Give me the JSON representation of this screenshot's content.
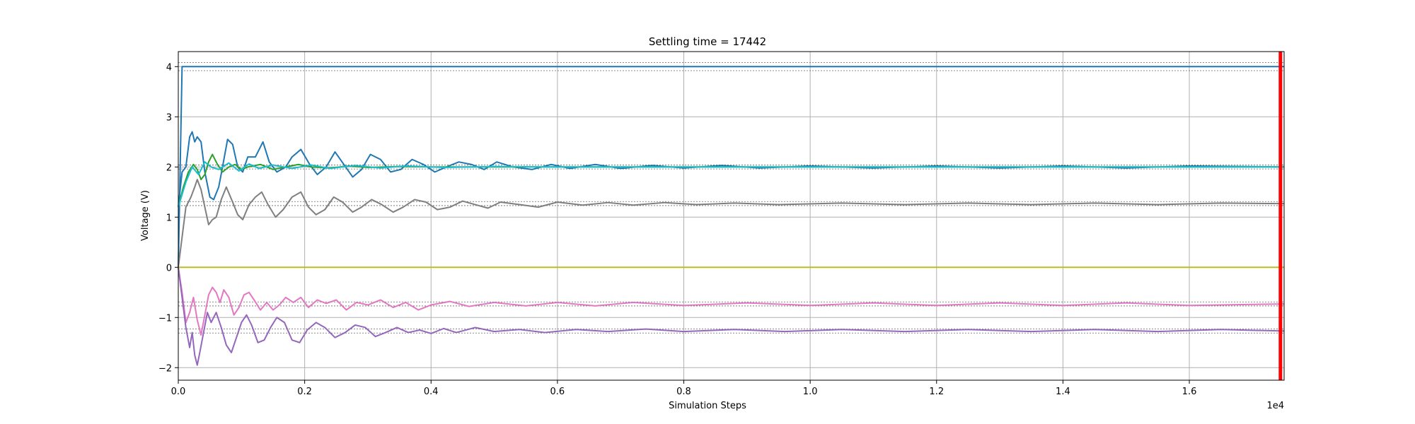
{
  "chart_data": {
    "type": "line",
    "title": "Settling time = 17442",
    "xlabel": "Simulation Steps",
    "ylabel": "Voltage (V)",
    "x_offset_label": "1e4",
    "xlim": [
      0,
      17500
    ],
    "ylim": [
      -2.25,
      4.3
    ],
    "x_ticks": [
      0,
      2000,
      4000,
      6000,
      8000,
      10000,
      12000,
      14000,
      16000
    ],
    "x_tick_labels": [
      "0.0",
      "0.2",
      "0.4",
      "0.6",
      "0.8",
      "1.0",
      "1.2",
      "1.4",
      "1.6"
    ],
    "y_ticks": [
      -2,
      -1,
      0,
      1,
      2,
      3,
      4
    ],
    "y_tick_labels": [
      "−2",
      "−1",
      "0",
      "1",
      "2",
      "3",
      "4"
    ],
    "grid": true,
    "settling_time": 17442,
    "settling_marker_color": "#ff0000",
    "reference_bands": [
      {
        "center": 4.0,
        "half_width": 0.08
      },
      {
        "center": 2.0,
        "half_width": 0.04
      },
      {
        "center": 1.27,
        "half_width": 0.04
      },
      {
        "center": -0.73,
        "half_width": 0.04
      },
      {
        "center": -1.27,
        "half_width": 0.04
      }
    ],
    "series": [
      {
        "color": "#1f77b4",
        "points": [
          [
            0,
            0
          ],
          [
            60,
            4.0
          ],
          [
            17500,
            4.0
          ]
        ]
      },
      {
        "color": "#bcbd22",
        "points": [
          [
            0,
            0
          ],
          [
            17500,
            0
          ]
        ]
      },
      {
        "color": "#1f77b4",
        "points": [
          [
            0,
            1.2
          ],
          [
            60,
            1.9
          ],
          [
            120,
            2.0
          ],
          [
            180,
            2.6
          ],
          [
            220,
            2.7
          ],
          [
            260,
            2.5
          ],
          [
            300,
            2.6
          ],
          [
            360,
            2.5
          ],
          [
            420,
            1.9
          ],
          [
            500,
            1.4
          ],
          [
            560,
            1.35
          ],
          [
            640,
            1.6
          ],
          [
            700,
            2.0
          ],
          [
            780,
            2.55
          ],
          [
            860,
            2.45
          ],
          [
            940,
            2.0
          ],
          [
            1020,
            1.9
          ],
          [
            1100,
            2.2
          ],
          [
            1220,
            2.2
          ],
          [
            1340,
            2.5
          ],
          [
            1440,
            2.1
          ],
          [
            1560,
            1.9
          ],
          [
            1700,
            2.0
          ],
          [
            1800,
            2.2
          ],
          [
            1940,
            2.35
          ],
          [
            2080,
            2.05
          ],
          [
            2200,
            1.85
          ],
          [
            2340,
            2.0
          ],
          [
            2480,
            2.3
          ],
          [
            2620,
            2.05
          ],
          [
            2760,
            1.8
          ],
          [
            2900,
            1.95
          ],
          [
            3040,
            2.25
          ],
          [
            3200,
            2.15
          ],
          [
            3360,
            1.9
          ],
          [
            3520,
            1.95
          ],
          [
            3700,
            2.15
          ],
          [
            3880,
            2.05
          ],
          [
            4060,
            1.9
          ],
          [
            4240,
            2.0
          ],
          [
            4440,
            2.1
          ],
          [
            4640,
            2.05
          ],
          [
            4840,
            1.95
          ],
          [
            5040,
            2.1
          ],
          [
            5300,
            2.0
          ],
          [
            5600,
            1.95
          ],
          [
            5900,
            2.05
          ],
          [
            6200,
            1.97
          ],
          [
            6600,
            2.05
          ],
          [
            7000,
            1.97
          ],
          [
            7500,
            2.03
          ],
          [
            8000,
            1.98
          ],
          [
            8600,
            2.03
          ],
          [
            9200,
            1.98
          ],
          [
            10000,
            2.02
          ],
          [
            11000,
            1.98
          ],
          [
            12000,
            2.02
          ],
          [
            13000,
            1.98
          ],
          [
            14000,
            2.02
          ],
          [
            15000,
            1.98
          ],
          [
            16000,
            2.02
          ],
          [
            17500,
            2.0
          ]
        ]
      },
      {
        "color": "#2ca02c",
        "points": [
          [
            0,
            1.2
          ],
          [
            80,
            1.6
          ],
          [
            160,
            1.9
          ],
          [
            240,
            2.05
          ],
          [
            300,
            1.95
          ],
          [
            360,
            1.75
          ],
          [
            420,
            1.85
          ],
          [
            480,
            2.1
          ],
          [
            540,
            2.25
          ],
          [
            620,
            2.05
          ],
          [
            700,
            1.9
          ],
          [
            800,
            2.0
          ],
          [
            900,
            2.05
          ],
          [
            1000,
            1.95
          ],
          [
            1100,
            2.0
          ],
          [
            1300,
            2.05
          ],
          [
            1500,
            1.95
          ],
          [
            1700,
            2.0
          ],
          [
            1900,
            2.05
          ],
          [
            2100,
            2.0
          ],
          [
            2400,
            1.98
          ],
          [
            2700,
            2.02
          ],
          [
            3000,
            1.99
          ],
          [
            3500,
            2.01
          ],
          [
            4000,
            2.0
          ],
          [
            6000,
            2.0
          ],
          [
            17500,
            2.0
          ]
        ]
      },
      {
        "color": "#17becf",
        "points": [
          [
            0,
            1.2
          ],
          [
            120,
            1.7
          ],
          [
            220,
            2.0
          ],
          [
            320,
            1.85
          ],
          [
            420,
            2.1
          ],
          [
            520,
            2.0
          ],
          [
            640,
            1.95
          ],
          [
            800,
            2.08
          ],
          [
            960,
            1.92
          ],
          [
            1120,
            2.06
          ],
          [
            1280,
            1.97
          ],
          [
            1500,
            2.04
          ],
          [
            1800,
            1.97
          ],
          [
            2100,
            2.04
          ],
          [
            2400,
            1.97
          ],
          [
            2800,
            2.03
          ],
          [
            3200,
            1.98
          ],
          [
            3600,
            2.02
          ],
          [
            4200,
            1.99
          ],
          [
            5000,
            2.01
          ],
          [
            6000,
            2.0
          ],
          [
            17500,
            2.0
          ]
        ]
      },
      {
        "color": "#7f7f7f",
        "points": [
          [
            0,
            0
          ],
          [
            60,
            0.6
          ],
          [
            120,
            1.2
          ],
          [
            200,
            1.4
          ],
          [
            260,
            1.6
          ],
          [
            300,
            1.75
          ],
          [
            360,
            1.55
          ],
          [
            420,
            1.2
          ],
          [
            480,
            0.85
          ],
          [
            540,
            0.95
          ],
          [
            600,
            1.0
          ],
          [
            680,
            1.35
          ],
          [
            760,
            1.6
          ],
          [
            860,
            1.3
          ],
          [
            940,
            1.05
          ],
          [
            1020,
            0.95
          ],
          [
            1120,
            1.25
          ],
          [
            1220,
            1.4
          ],
          [
            1320,
            1.5
          ],
          [
            1420,
            1.25
          ],
          [
            1540,
            1.0
          ],
          [
            1660,
            1.15
          ],
          [
            1800,
            1.4
          ],
          [
            1940,
            1.5
          ],
          [
            2060,
            1.2
          ],
          [
            2180,
            1.05
          ],
          [
            2320,
            1.15
          ],
          [
            2460,
            1.4
          ],
          [
            2600,
            1.3
          ],
          [
            2760,
            1.1
          ],
          [
            2900,
            1.2
          ],
          [
            3060,
            1.35
          ],
          [
            3220,
            1.25
          ],
          [
            3400,
            1.1
          ],
          [
            3560,
            1.2
          ],
          [
            3740,
            1.35
          ],
          [
            3920,
            1.3
          ],
          [
            4100,
            1.15
          ],
          [
            4300,
            1.2
          ],
          [
            4500,
            1.32
          ],
          [
            4700,
            1.25
          ],
          [
            4900,
            1.18
          ],
          [
            5100,
            1.3
          ],
          [
            5400,
            1.25
          ],
          [
            5700,
            1.2
          ],
          [
            6000,
            1.3
          ],
          [
            6400,
            1.24
          ],
          [
            6800,
            1.29
          ],
          [
            7200,
            1.24
          ],
          [
            7700,
            1.29
          ],
          [
            8200,
            1.25
          ],
          [
            8800,
            1.28
          ],
          [
            9500,
            1.25
          ],
          [
            10500,
            1.28
          ],
          [
            11500,
            1.25
          ],
          [
            12500,
            1.28
          ],
          [
            13500,
            1.25
          ],
          [
            14500,
            1.28
          ],
          [
            15500,
            1.25
          ],
          [
            16500,
            1.28
          ],
          [
            17500,
            1.27
          ]
        ]
      },
      {
        "color": "#e377c2",
        "points": [
          [
            0,
            0
          ],
          [
            60,
            -0.5
          ],
          [
            120,
            -1.1
          ],
          [
            180,
            -0.9
          ],
          [
            240,
            -0.6
          ],
          [
            300,
            -1.05
          ],
          [
            360,
            -1.35
          ],
          [
            420,
            -0.95
          ],
          [
            480,
            -0.55
          ],
          [
            540,
            -0.4
          ],
          [
            600,
            -0.5
          ],
          [
            660,
            -0.7
          ],
          [
            720,
            -0.45
          ],
          [
            800,
            -0.6
          ],
          [
            880,
            -0.95
          ],
          [
            960,
            -0.8
          ],
          [
            1040,
            -0.55
          ],
          [
            1120,
            -0.5
          ],
          [
            1200,
            -0.65
          ],
          [
            1300,
            -0.85
          ],
          [
            1400,
            -0.7
          ],
          [
            1500,
            -0.85
          ],
          [
            1600,
            -0.75
          ],
          [
            1700,
            -0.6
          ],
          [
            1820,
            -0.7
          ],
          [
            1940,
            -0.6
          ],
          [
            2060,
            -0.8
          ],
          [
            2200,
            -0.65
          ],
          [
            2340,
            -0.72
          ],
          [
            2500,
            -0.65
          ],
          [
            2660,
            -0.85
          ],
          [
            2820,
            -0.7
          ],
          [
            3000,
            -0.75
          ],
          [
            3200,
            -0.65
          ],
          [
            3400,
            -0.8
          ],
          [
            3600,
            -0.7
          ],
          [
            3800,
            -0.85
          ],
          [
            4000,
            -0.75
          ],
          [
            4300,
            -0.68
          ],
          [
            4600,
            -0.78
          ],
          [
            5000,
            -0.7
          ],
          [
            5500,
            -0.77
          ],
          [
            6000,
            -0.7
          ],
          [
            6600,
            -0.77
          ],
          [
            7200,
            -0.7
          ],
          [
            8000,
            -0.76
          ],
          [
            9000,
            -0.71
          ],
          [
            10000,
            -0.76
          ],
          [
            11000,
            -0.71
          ],
          [
            12000,
            -0.76
          ],
          [
            13000,
            -0.71
          ],
          [
            14000,
            -0.76
          ],
          [
            15000,
            -0.71
          ],
          [
            16000,
            -0.76
          ],
          [
            17500,
            -0.73
          ]
        ]
      },
      {
        "color": "#9467bd",
        "points": [
          [
            0,
            0
          ],
          [
            60,
            -0.6
          ],
          [
            120,
            -1.2
          ],
          [
            180,
            -1.6
          ],
          [
            220,
            -1.3
          ],
          [
            260,
            -1.75
          ],
          [
            300,
            -1.95
          ],
          [
            340,
            -1.7
          ],
          [
            400,
            -1.3
          ],
          [
            460,
            -0.9
          ],
          [
            520,
            -1.1
          ],
          [
            600,
            -0.9
          ],
          [
            680,
            -1.2
          ],
          [
            760,
            -1.55
          ],
          [
            840,
            -1.7
          ],
          [
            920,
            -1.4
          ],
          [
            1000,
            -1.1
          ],
          [
            1080,
            -0.95
          ],
          [
            1160,
            -1.15
          ],
          [
            1260,
            -1.5
          ],
          [
            1360,
            -1.45
          ],
          [
            1460,
            -1.2
          ],
          [
            1560,
            -1.0
          ],
          [
            1680,
            -1.1
          ],
          [
            1800,
            -1.45
          ],
          [
            1920,
            -1.5
          ],
          [
            2040,
            -1.25
          ],
          [
            2180,
            -1.1
          ],
          [
            2320,
            -1.2
          ],
          [
            2480,
            -1.4
          ],
          [
            2640,
            -1.3
          ],
          [
            2800,
            -1.15
          ],
          [
            2960,
            -1.2
          ],
          [
            3120,
            -1.38
          ],
          [
            3280,
            -1.3
          ],
          [
            3460,
            -1.2
          ],
          [
            3640,
            -1.3
          ],
          [
            3820,
            -1.25
          ],
          [
            4000,
            -1.32
          ],
          [
            4200,
            -1.22
          ],
          [
            4400,
            -1.3
          ],
          [
            4700,
            -1.2
          ],
          [
            5000,
            -1.28
          ],
          [
            5400,
            -1.24
          ],
          [
            5800,
            -1.3
          ],
          [
            6300,
            -1.24
          ],
          [
            6800,
            -1.28
          ],
          [
            7400,
            -1.23
          ],
          [
            8000,
            -1.28
          ],
          [
            8800,
            -1.24
          ],
          [
            9600,
            -1.28
          ],
          [
            10500,
            -1.24
          ],
          [
            11500,
            -1.28
          ],
          [
            12500,
            -1.24
          ],
          [
            13500,
            -1.28
          ],
          [
            14500,
            -1.24
          ],
          [
            15500,
            -1.28
          ],
          [
            16500,
            -1.24
          ],
          [
            17500,
            -1.27
          ]
        ]
      }
    ]
  }
}
